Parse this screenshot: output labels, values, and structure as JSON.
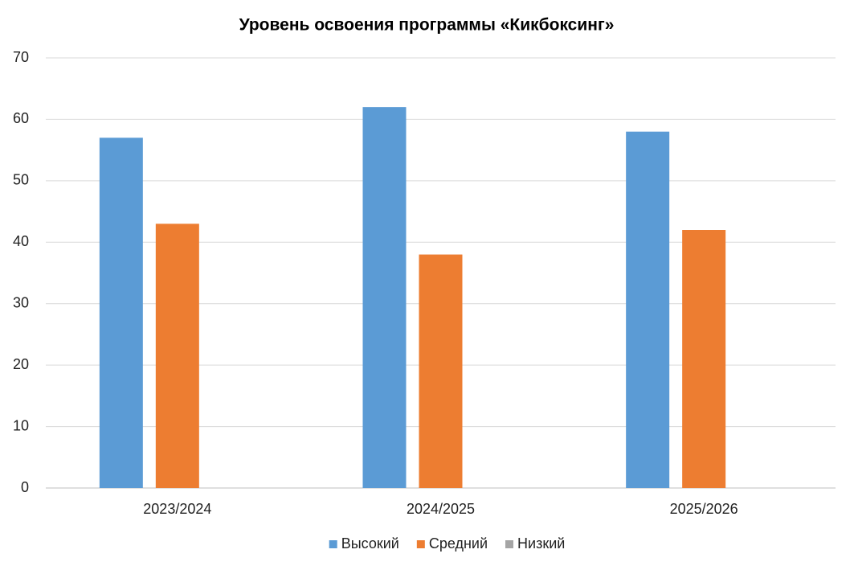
{
  "chart_data": {
    "type": "bar",
    "title": "Уровень освоения программы «Кикбоксинг»",
    "categories": [
      "2023/2024",
      "2024/2025",
      "2025/2026"
    ],
    "series": [
      {
        "name": "Высокий",
        "color": "#5b9bd5",
        "values": [
          57,
          62,
          58
        ]
      },
      {
        "name": "Средний",
        "color": "#ed7d31",
        "values": [
          43,
          38,
          42
        ]
      },
      {
        "name": "Низкий",
        "color": "#a5a5a5",
        "values": [
          0,
          0,
          0
        ]
      }
    ],
    "ylim": [
      0,
      70
    ],
    "yticks": [
      0,
      10,
      20,
      30,
      40,
      50,
      60,
      70
    ],
    "grid": true,
    "legend": "bottom"
  }
}
